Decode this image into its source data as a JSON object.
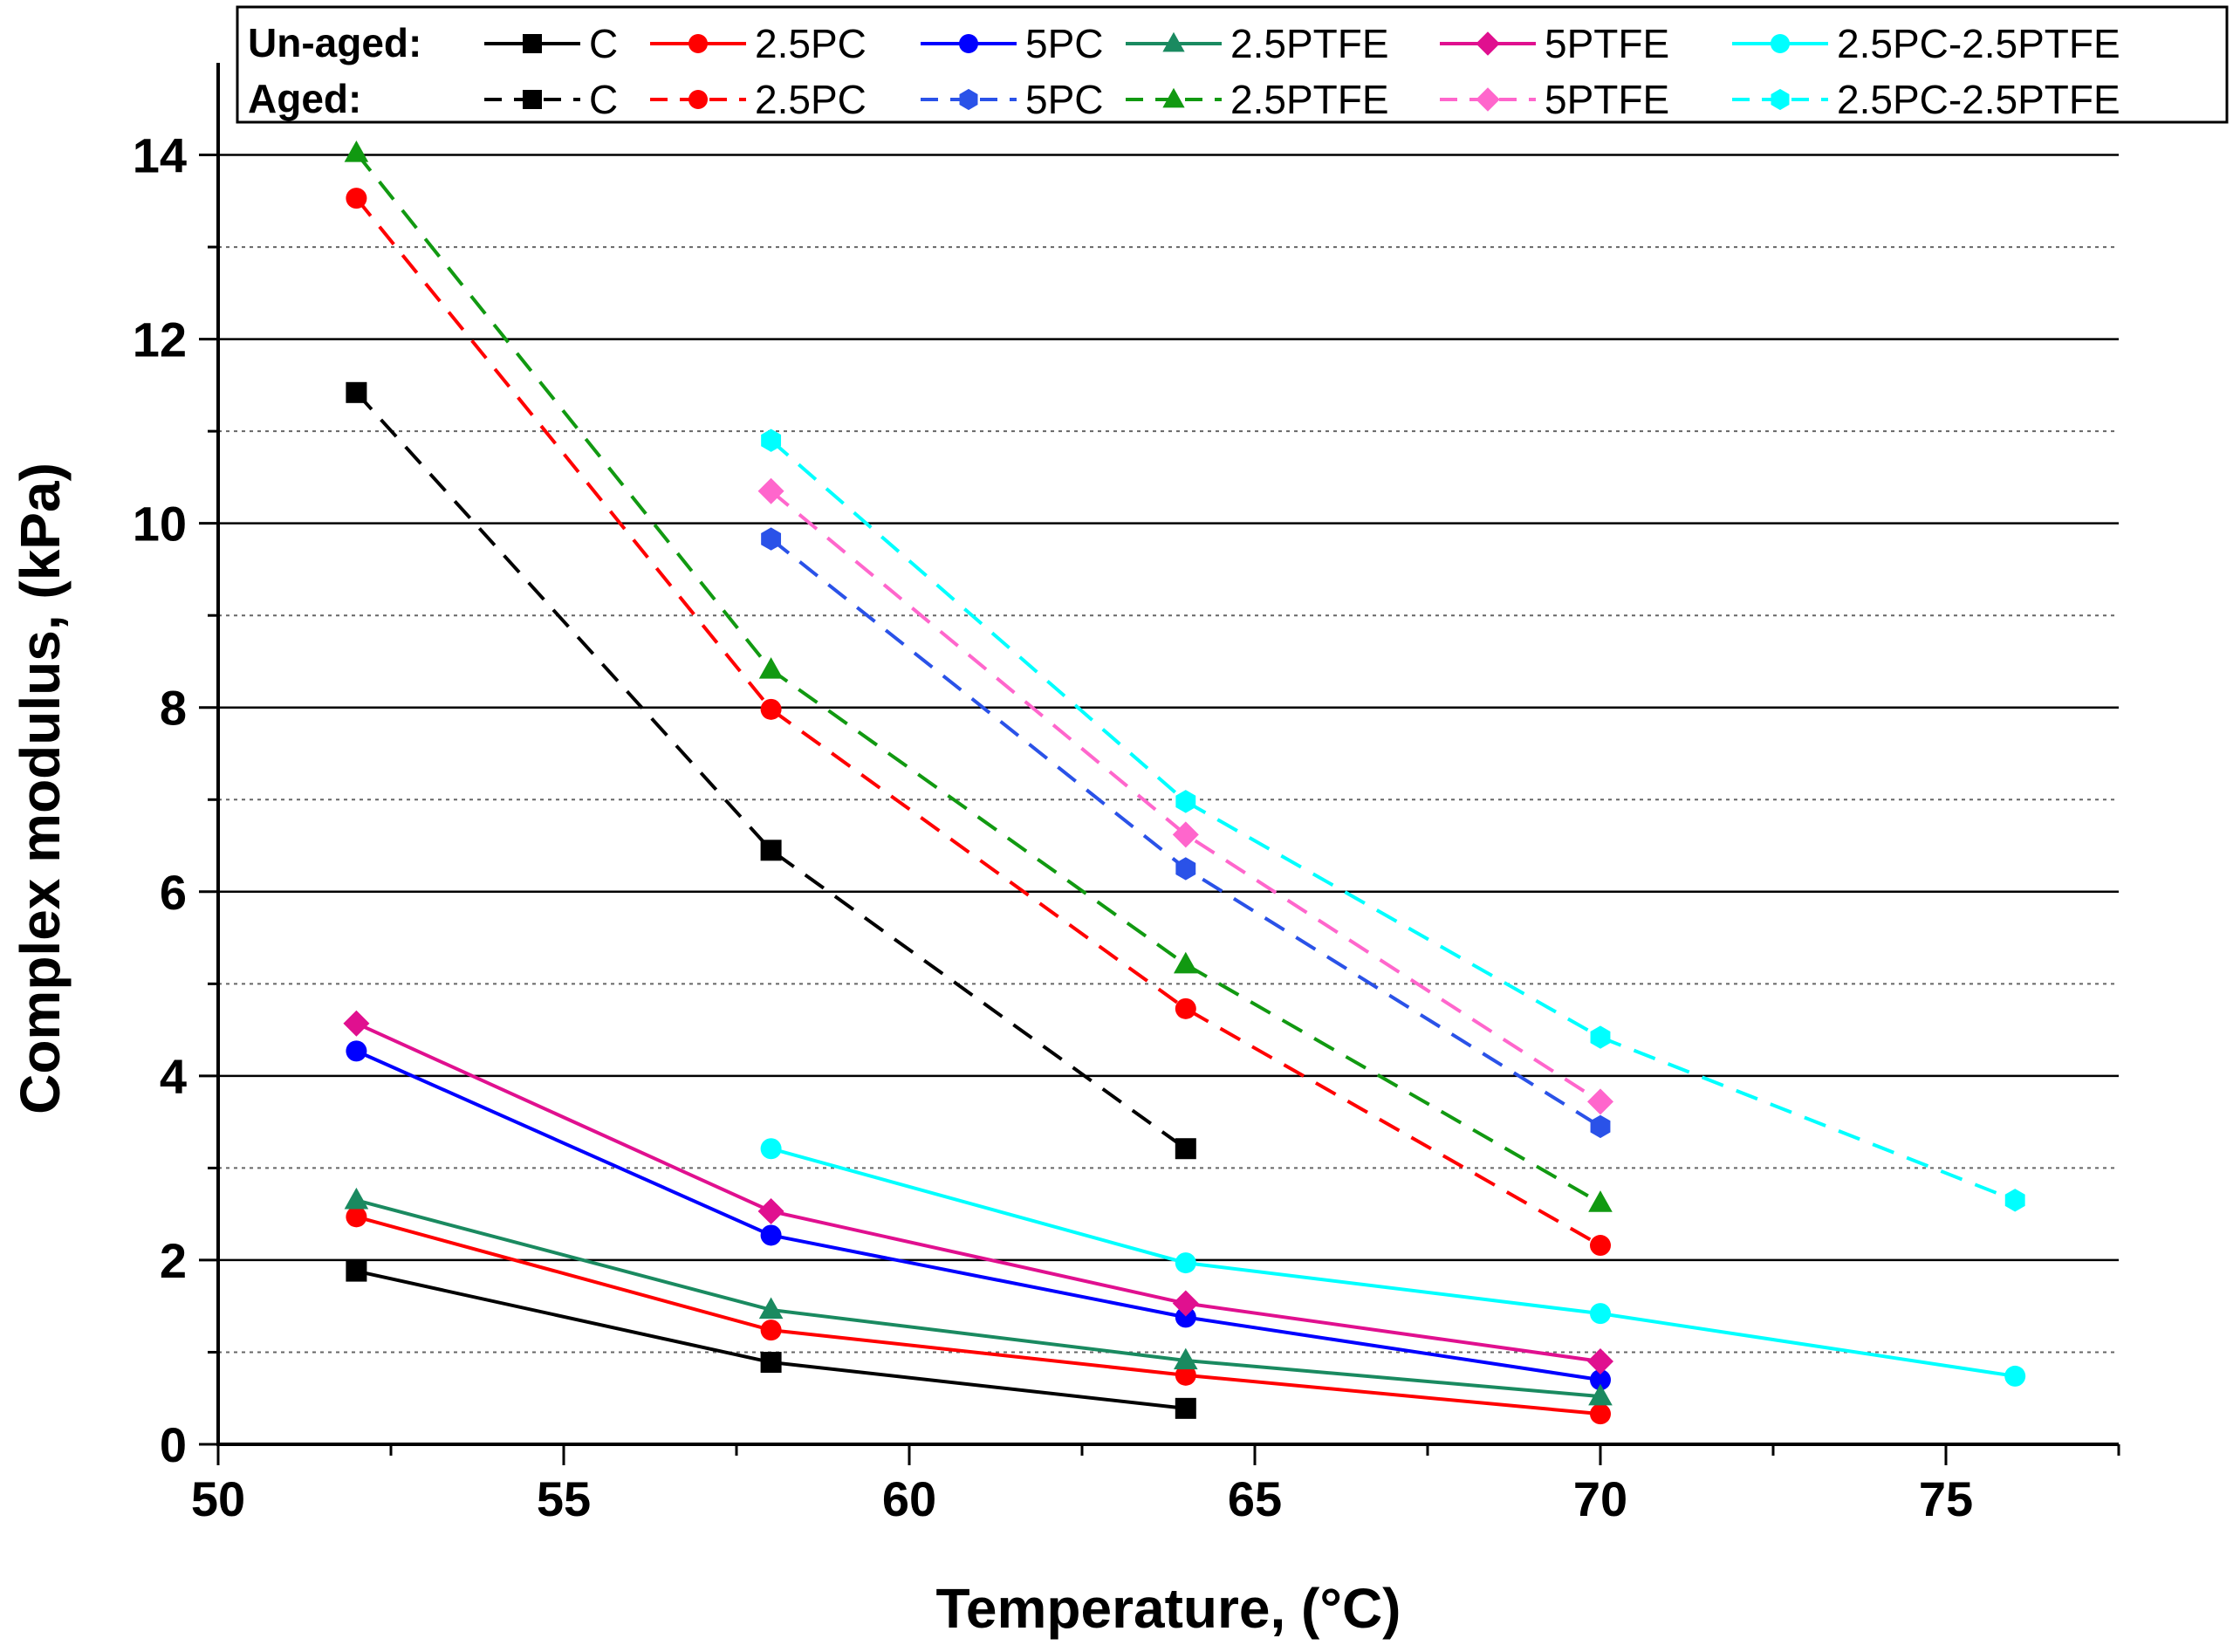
{
  "chart_data": {
    "type": "line",
    "title": "",
    "xlabel": "Temperature, (°C)",
    "ylabel": "Complex modulus, (kPa)",
    "xlim": [
      50,
      77.5
    ],
    "ylim": [
      0,
      15
    ],
    "x_ticks": [
      "50",
      "55",
      "60",
      "65",
      "70",
      "75"
    ],
    "y_ticks": [
      "0",
      "2",
      "4",
      "6",
      "8",
      "10",
      "12",
      "14"
    ],
    "grid": "horizontal solid major at even values, dotted minor at odd values",
    "legend_groups": [
      {
        "label": "Un-aged:",
        "style": "solid"
      },
      {
        "label": "Aged:",
        "style": "dashed"
      }
    ],
    "series": [
      {
        "name": "C",
        "group": "Un-aged",
        "color": "#000000",
        "marker": "square",
        "dash": false,
        "x": [
          52,
          58,
          64
        ],
        "y": [
          1.88,
          0.89,
          0.39
        ]
      },
      {
        "name": "2.5PC",
        "group": "Un-aged",
        "color": "#ff0000",
        "marker": "circle",
        "dash": false,
        "x": [
          52,
          58,
          64,
          70
        ],
        "y": [
          2.47,
          1.24,
          0.75,
          0.33
        ]
      },
      {
        "name": "5PC",
        "group": "Un-aged",
        "color": "#0000ff",
        "marker": "circle",
        "dash": false,
        "x": [
          52,
          58,
          64,
          70
        ],
        "y": [
          4.27,
          2.27,
          1.38,
          0.7
        ]
      },
      {
        "name": "2.5PTFE",
        "group": "Un-aged",
        "color": "#1a8a60",
        "marker": "triangle",
        "dash": false,
        "x": [
          52,
          58,
          64,
          70
        ],
        "y": [
          2.65,
          1.46,
          0.91,
          0.52
        ]
      },
      {
        "name": "5PTFE",
        "group": "Un-aged",
        "color": "#e0108f",
        "marker": "diamond",
        "dash": false,
        "x": [
          52,
          58,
          64,
          70
        ],
        "y": [
          4.57,
          2.53,
          1.53,
          0.9
        ]
      },
      {
        "name": "2.5PC-2.5PTFE",
        "group": "Un-aged",
        "color": "#00ffff",
        "marker": "circle",
        "dash": false,
        "x": [
          58,
          64,
          70,
          76
        ],
        "y": [
          3.21,
          1.97,
          1.42,
          0.74
        ]
      },
      {
        "name": "C",
        "group": "Aged",
        "color": "#000000",
        "marker": "square",
        "dash": true,
        "x": [
          52,
          58,
          64
        ],
        "y": [
          11.42,
          6.45,
          3.21
        ]
      },
      {
        "name": "2.5PC",
        "group": "Aged",
        "color": "#ff0000",
        "marker": "circle",
        "dash": true,
        "x": [
          52,
          58,
          64,
          70
        ],
        "y": [
          13.53,
          7.98,
          4.73,
          2.16
        ]
      },
      {
        "name": "5PC",
        "group": "Aged",
        "color": "#2a52e8",
        "marker": "hexagon",
        "dash": true,
        "x": [
          58,
          64,
          70
        ],
        "y": [
          9.83,
          6.25,
          3.45
        ]
      },
      {
        "name": "2.5PTFE",
        "group": "Aged",
        "color": "#119911",
        "marker": "triangle",
        "dash": true,
        "x": [
          52,
          58,
          64,
          70
        ],
        "y": [
          14.02,
          8.41,
          5.21,
          2.62
        ]
      },
      {
        "name": "5PTFE",
        "group": "Aged",
        "color": "#ff66cc",
        "marker": "diamond",
        "dash": true,
        "x": [
          58,
          64,
          70
        ],
        "y": [
          10.35,
          6.62,
          3.72
        ]
      },
      {
        "name": "2.5PC-2.5PTFE",
        "group": "Aged",
        "color": "#00ffff",
        "marker": "hexagon",
        "dash": true,
        "x": [
          58,
          64,
          70,
          76
        ],
        "y": [
          10.9,
          6.98,
          4.42,
          2.65
        ]
      }
    ]
  }
}
